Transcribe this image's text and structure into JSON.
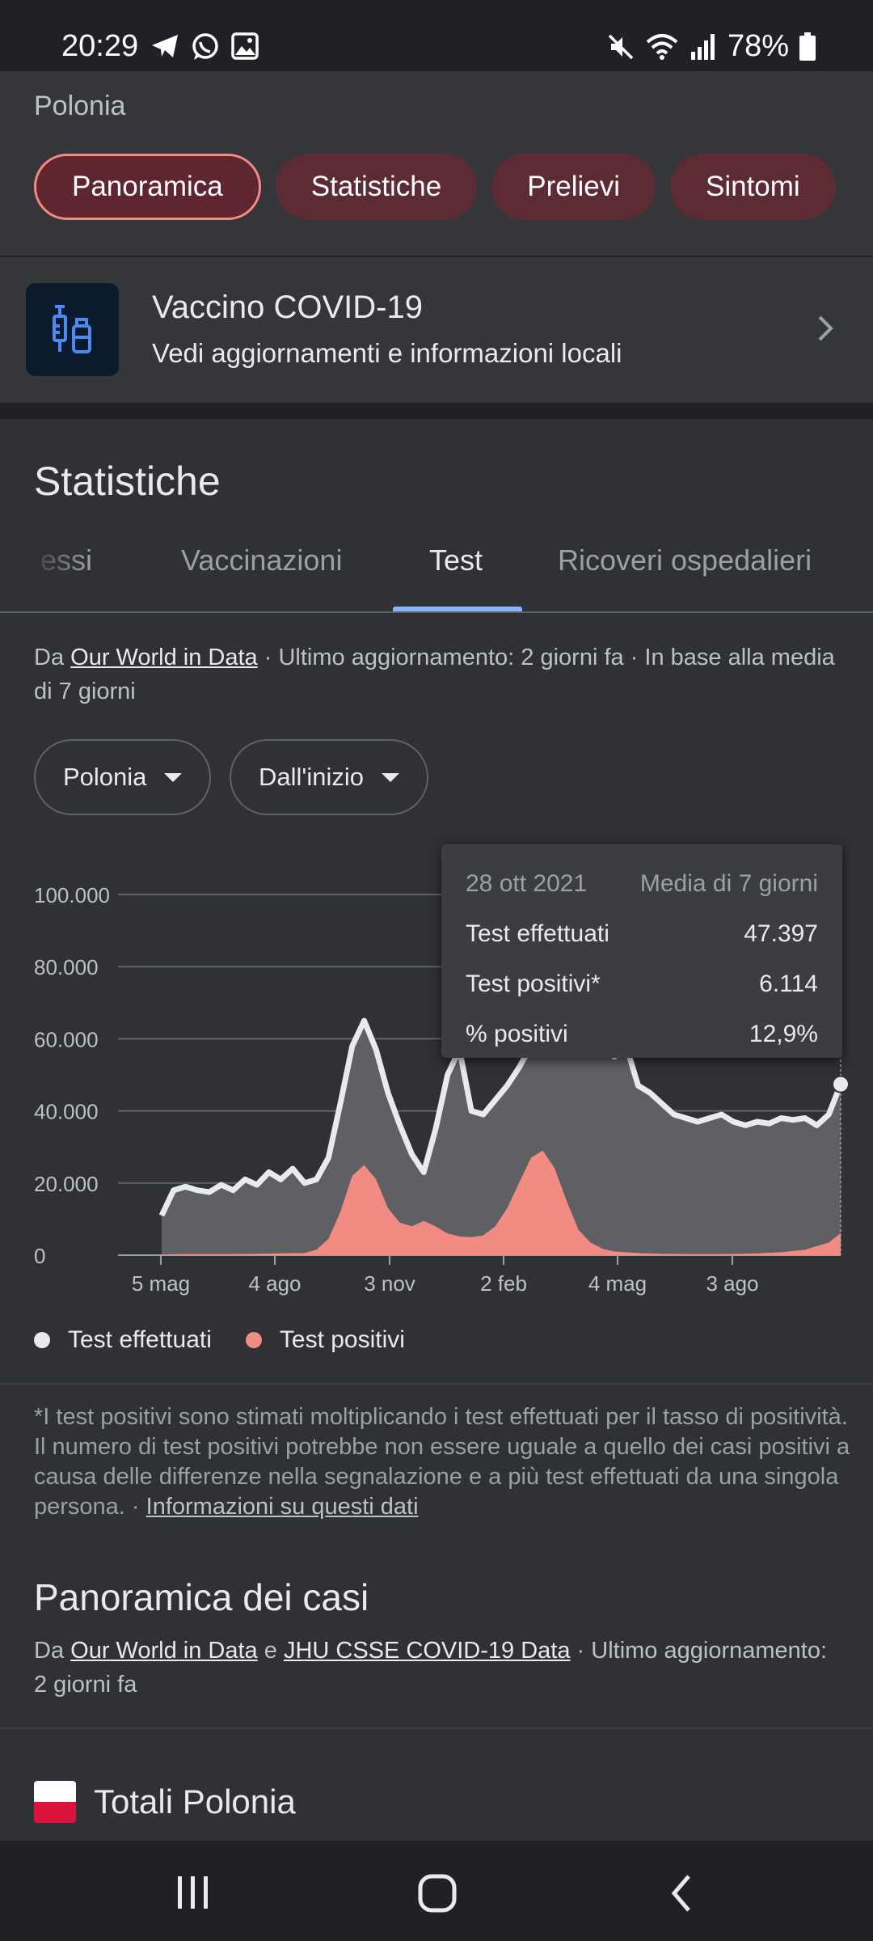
{
  "status_bar": {
    "time": "20:29",
    "battery": "78%",
    "left_icons": [
      "telegram-icon",
      "whatsapp-icon",
      "gallery-icon"
    ],
    "right_icons": [
      "mute-icon",
      "wifi-icon",
      "signal-icon",
      "battery-icon"
    ]
  },
  "header": {
    "location": "Polonia",
    "chips": [
      "Panoramica",
      "Statistiche",
      "Prelievi",
      "Sintomi"
    ]
  },
  "vaccine": {
    "title": "Vaccino COVID-19",
    "subtitle": "Vedi aggiornamenti e informazioni locali"
  },
  "stats": {
    "title": "Statistiche",
    "tabs": [
      "essi",
      "Vaccinazioni",
      "Test",
      "Ricoveri ospedalieri"
    ],
    "active_tab": "Test",
    "source": {
      "prefix": "Da ",
      "link": "Our World in Data",
      "suffix": " · Ultimo aggiornamento: 2 giorni fa · In base alla media di 7 giorni"
    },
    "dropdowns": [
      "Polonia",
      "Dall'inizio"
    ]
  },
  "tooltip": {
    "date": "28 ott 2021",
    "header_right": "Media di 7 giorni",
    "rows": [
      {
        "label": "Test effettuati",
        "value": "47.397"
      },
      {
        "label": "Test positivi*",
        "value": "6.114"
      },
      {
        "label": "% positivi",
        "value": "12,9%"
      }
    ]
  },
  "chart_data": {
    "type": "area",
    "y_ticks": [
      "100.000",
      "80.000",
      "60.000",
      "40.000",
      "20.000",
      "0"
    ],
    "x_ticks": [
      "5 mag",
      "4 ago",
      "3 nov",
      "2 feb",
      "4 mag",
      "3 ago"
    ],
    "ylim": [
      0,
      100000
    ],
    "x_range_weeks": [
      0,
      77
    ],
    "series": [
      {
        "name": "Test effettuati",
        "color": "#e8eaed",
        "points": [
          [
            0,
            11000
          ],
          [
            1,
            18000
          ],
          [
            2,
            19000
          ],
          [
            3,
            18000
          ],
          [
            4,
            17500
          ],
          [
            5,
            19500
          ],
          [
            6,
            18000
          ],
          [
            7,
            21000
          ],
          [
            8,
            19500
          ],
          [
            9,
            23000
          ],
          [
            10,
            21000
          ],
          [
            11,
            24000
          ],
          [
            12,
            20000
          ],
          [
            13,
            21000
          ],
          [
            14,
            27000
          ],
          [
            15,
            42000
          ],
          [
            16,
            58000
          ],
          [
            17,
            65000
          ],
          [
            18,
            57000
          ],
          [
            19,
            45000
          ],
          [
            20,
            36000
          ],
          [
            21,
            28000
          ],
          [
            22,
            23000
          ],
          [
            23,
            35000
          ],
          [
            24,
            50000
          ],
          [
            25,
            57000
          ],
          [
            26,
            40000
          ],
          [
            27,
            39000
          ],
          [
            28,
            43000
          ],
          [
            29,
            47000
          ],
          [
            30,
            52000
          ],
          [
            31,
            58000
          ],
          [
            32,
            66000
          ],
          [
            33,
            73000
          ],
          [
            34,
            75000
          ],
          [
            35,
            70000
          ],
          [
            36,
            65000
          ],
          [
            37,
            60000
          ],
          [
            38,
            55000
          ],
          [
            39,
            58000
          ],
          [
            40,
            47000
          ],
          [
            41,
            45000
          ],
          [
            42,
            42000
          ],
          [
            43,
            39000
          ],
          [
            44,
            38000
          ],
          [
            45,
            37000
          ],
          [
            46,
            38000
          ],
          [
            47,
            39000
          ],
          [
            48,
            37000
          ],
          [
            49,
            36000
          ],
          [
            50,
            37000
          ],
          [
            51,
            36500
          ],
          [
            52,
            38000
          ],
          [
            53,
            37500
          ],
          [
            54,
            38000
          ],
          [
            55,
            36000
          ],
          [
            56,
            39000
          ],
          [
            57,
            47397
          ]
        ]
      },
      {
        "name": "Test positivi",
        "color": "#f28b82",
        "points": [
          [
            0,
            200
          ],
          [
            2,
            300
          ],
          [
            4,
            300
          ],
          [
            6,
            300
          ],
          [
            8,
            400
          ],
          [
            10,
            500
          ],
          [
            12,
            600
          ],
          [
            13,
            1500
          ],
          [
            14,
            4500
          ],
          [
            15,
            12000
          ],
          [
            16,
            22000
          ],
          [
            17,
            25000
          ],
          [
            18,
            21000
          ],
          [
            19,
            13000
          ],
          [
            20,
            9000
          ],
          [
            21,
            8000
          ],
          [
            22,
            9500
          ],
          [
            23,
            8000
          ],
          [
            24,
            6000
          ],
          [
            25,
            5200
          ],
          [
            26,
            5000
          ],
          [
            27,
            5500
          ],
          [
            28,
            8000
          ],
          [
            29,
            13000
          ],
          [
            30,
            20000
          ],
          [
            31,
            27000
          ],
          [
            32,
            29000
          ],
          [
            33,
            24000
          ],
          [
            34,
            15000
          ],
          [
            35,
            7000
          ],
          [
            36,
            3500
          ],
          [
            37,
            1800
          ],
          [
            38,
            1000
          ],
          [
            40,
            600
          ],
          [
            42,
            400
          ],
          [
            44,
            300
          ],
          [
            46,
            300
          ],
          [
            48,
            350
          ],
          [
            50,
            500
          ],
          [
            52,
            800
          ],
          [
            54,
            1500
          ],
          [
            56,
            3500
          ],
          [
            57,
            6114
          ]
        ]
      }
    ],
    "legend": [
      "Test effettuati",
      "Test positivi"
    ]
  },
  "footnote": {
    "text": "*I test positivi sono stimati moltiplicando i test effettuati per il tasso di positività. Il numero di test positivi potrebbe non essere uguale a quello dei casi positivi a causa delle differenze nella segnalazione e a più test effettuati da una singola persona.  ·  ",
    "link": "Informazioni su questi dati"
  },
  "cases": {
    "title": "Panoramica dei casi",
    "src_prefix": "Da ",
    "link1": "Our World in Data",
    "src_mid": " e ",
    "link2": "JHU CSSE COVID-19 Data",
    "src_suffix": " · Ultimo aggiornamento: 2 giorni fa"
  },
  "totals": {
    "label": "Totali Polonia"
  },
  "nav": {
    "icons": [
      "recents-icon",
      "home-icon",
      "back-icon"
    ]
  }
}
